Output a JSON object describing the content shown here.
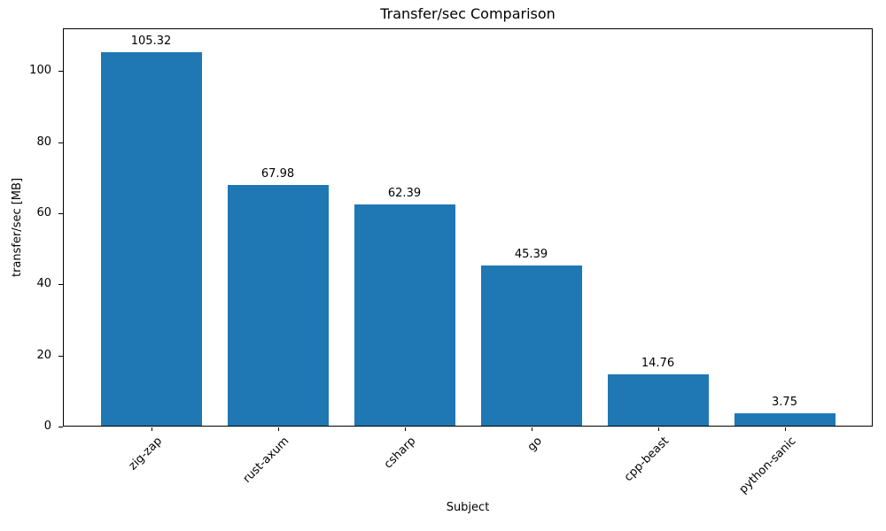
{
  "chart_data": {
    "type": "bar",
    "title": "Transfer/sec Comparison",
    "xlabel": "Subject",
    "ylabel": "transfer/sec [MB]",
    "categories": [
      "zig-zap",
      "rust-axum",
      "csharp",
      "go",
      "cpp-beast",
      "python-sanic"
    ],
    "values": [
      105.32,
      67.98,
      62.39,
      45.39,
      14.76,
      3.75
    ],
    "value_labels": [
      "105.32",
      "67.98",
      "62.39",
      "45.39",
      "14.76",
      "3.75"
    ],
    "yticks": [
      0,
      20,
      40,
      60,
      80,
      100
    ],
    "ylim": [
      0,
      112
    ],
    "bar_color": "#1f77b4",
    "text_color": "#000000",
    "axis_color": "#000000",
    "background": "#ffffff",
    "grid": false,
    "legend_position": "none",
    "xtick_rotation_deg": 45
  }
}
